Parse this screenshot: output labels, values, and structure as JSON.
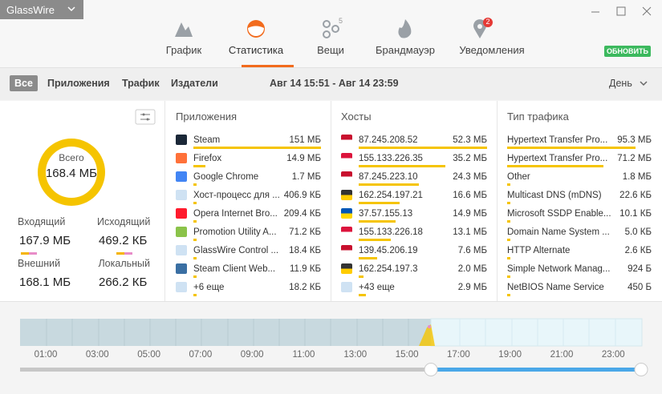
{
  "app": {
    "name": "GlassWire"
  },
  "nav": [
    {
      "label": "График"
    },
    {
      "label": "Статистика"
    },
    {
      "label": "Вещи",
      "badge": "5"
    },
    {
      "label": "Брандмауэр"
    },
    {
      "label": "Уведомления",
      "badge": "2"
    }
  ],
  "update_button": "ОБНОВИТЬ",
  "filters": [
    "Все",
    "Приложения",
    "Трафик",
    "Издатели"
  ],
  "date_range": "Авг 14 15:51 - Авг 14 23:59",
  "period": "День",
  "summary": {
    "total_label": "Всего",
    "total": "168.4 МБ",
    "stats": [
      {
        "label": "Входящий",
        "value": "167.9 МБ"
      },
      {
        "label": "Исходящий",
        "value": "469.2 КБ"
      },
      {
        "label": "Внешний",
        "value": "168.1 МБ"
      },
      {
        "label": "Локальный",
        "value": "266.2 КБ"
      }
    ]
  },
  "panels": [
    {
      "title": "Приложения",
      "rows": [
        {
          "name": "Steam",
          "value": "151 МБ"
        },
        {
          "name": "Firefox",
          "value": "14.9 МБ"
        },
        {
          "name": "Google Chrome",
          "value": "1.7 МБ"
        },
        {
          "name": "Хост-процесс для ...",
          "value": "406.9 КБ"
        },
        {
          "name": "Opera Internet Bro...",
          "value": "209.4 КБ"
        },
        {
          "name": "Promotion Utility A...",
          "value": "71.2 КБ"
        },
        {
          "name": "GlassWire Control ...",
          "value": "18.4 КБ"
        },
        {
          "name": "Steam Client Web...",
          "value": "11.9 КБ"
        },
        {
          "name": "+6 еще",
          "value": "18.2 КБ"
        }
      ]
    },
    {
      "title": "Хосты",
      "rows": [
        {
          "name": "87.245.208.52",
          "value": "52.3 МБ"
        },
        {
          "name": "155.133.226.35",
          "value": "35.2 МБ"
        },
        {
          "name": "87.245.223.10",
          "value": "24.3 МБ"
        },
        {
          "name": "162.254.197.21",
          "value": "16.6 МБ"
        },
        {
          "name": "37.57.155.13",
          "value": "14.9 МБ"
        },
        {
          "name": "155.133.226.18",
          "value": "13.1 МБ"
        },
        {
          "name": "139.45.206.19",
          "value": "7.6 МБ"
        },
        {
          "name": "162.254.197.3",
          "value": "2.0 МБ"
        },
        {
          "name": "+43 еще",
          "value": "2.9 МБ"
        }
      ]
    },
    {
      "title": "Тип трафика",
      "rows": [
        {
          "name": "Hypertext Transfer Pro...",
          "value": "95.3 МБ"
        },
        {
          "name": "Hypertext Transfer Pro...",
          "value": "71.2 МБ"
        },
        {
          "name": "Other",
          "value": "1.8 МБ"
        },
        {
          "name": "Multicast DNS (mDNS)",
          "value": "22.6 КБ"
        },
        {
          "name": "Microsoft SSDP Enable...",
          "value": "10.1 КБ"
        },
        {
          "name": "Domain Name System ...",
          "value": "5.0 КБ"
        },
        {
          "name": "HTTP Alternate",
          "value": "2.6 КБ"
        },
        {
          "name": "Simple Network Manag...",
          "value": "924 Б"
        },
        {
          "name": "NetBIOS Name Service",
          "value": "450 Б"
        }
      ]
    }
  ],
  "timeline": {
    "ticks": [
      "01:00",
      "03:00",
      "05:00",
      "07:00",
      "09:00",
      "11:00",
      "13:00",
      "15:00",
      "17:00",
      "19:00",
      "21:00",
      "23:00"
    ]
  }
}
